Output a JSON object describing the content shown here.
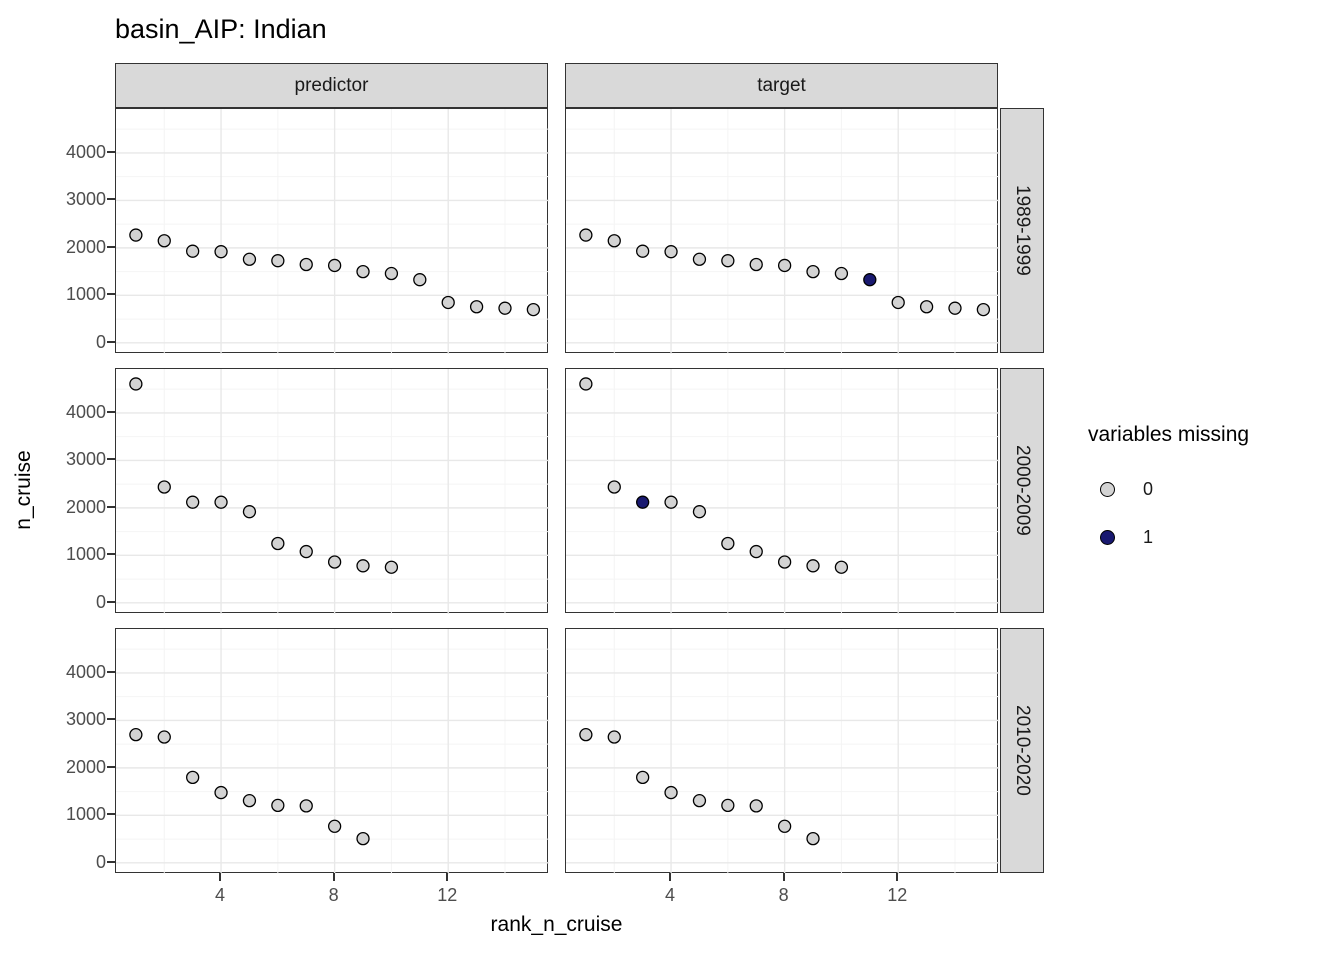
{
  "title": "basin_AIP: Indian",
  "facets": {
    "columns": [
      "predictor",
      "target"
    ],
    "rows": [
      "1989-1999",
      "2000-2009",
      "2010-2020"
    ]
  },
  "axes": {
    "x_label": "rank_n_cruise",
    "y_label": "n_cruise",
    "x_ticks": [
      4,
      8,
      12
    ],
    "y_ticks": [
      4000,
      3000,
      2000,
      1000,
      0
    ]
  },
  "legend": {
    "title": "variables missing",
    "items": [
      {
        "label": "0",
        "color": "#d3d3d3"
      },
      {
        "label": "1",
        "color": "#191970"
      }
    ]
  },
  "colors": {
    "point_fill_missing0": "#d3d3d3",
    "point_fill_missing1": "#191970",
    "point_stroke": "#000000",
    "strip_background": "#d9d9d9",
    "panel_border": "#333333",
    "grid_major": "#e8e8e8",
    "grid_minor": "#f4f4f4",
    "tick_label": "#4d4d4d"
  },
  "chart_data": {
    "type": "scatter",
    "title": "basin_AIP: Indian",
    "xlabel": "rank_n_cruise",
    "ylabel": "n_cruise",
    "legend_title": "variables missing",
    "legend_position": "right",
    "grid": true,
    "col_facets": [
      "predictor",
      "target"
    ],
    "row_facets": [
      "1989-1999",
      "2000-2009",
      "2010-2020"
    ],
    "x_range": [
      0.3,
      15.55
    ],
    "y_range": [
      -235,
      4925
    ],
    "x_major_gridlines": [
      4,
      8,
      12
    ],
    "x_minor_gridlines": [
      2,
      6,
      10,
      14
    ],
    "y_major_gridlines": [
      0,
      1000,
      2000,
      3000,
      4000
    ],
    "y_minor_gridlines": [
      500,
      1500,
      2500,
      3500,
      4500
    ],
    "point_note": "points are [rank_n_cruise, n_cruise, variables_missing]",
    "panels": [
      {
        "row": "1989-1999",
        "col": "predictor",
        "points": [
          [
            1,
            2270,
            0
          ],
          [
            2,
            2150,
            0
          ],
          [
            3,
            1930,
            0
          ],
          [
            4,
            1920,
            0
          ],
          [
            5,
            1760,
            0
          ],
          [
            6,
            1730,
            0
          ],
          [
            7,
            1650,
            0
          ],
          [
            8,
            1630,
            0
          ],
          [
            9,
            1500,
            0
          ],
          [
            10,
            1460,
            0
          ],
          [
            11,
            1330,
            0
          ],
          [
            12,
            850,
            0
          ],
          [
            13,
            760,
            0
          ],
          [
            14,
            730,
            0
          ],
          [
            15,
            700,
            0
          ]
        ]
      },
      {
        "row": "1989-1999",
        "col": "target",
        "points": [
          [
            1,
            2270,
            0
          ],
          [
            2,
            2150,
            0
          ],
          [
            3,
            1930,
            0
          ],
          [
            4,
            1920,
            0
          ],
          [
            5,
            1760,
            0
          ],
          [
            6,
            1730,
            0
          ],
          [
            7,
            1650,
            0
          ],
          [
            8,
            1630,
            0
          ],
          [
            9,
            1500,
            0
          ],
          [
            10,
            1460,
            0
          ],
          [
            11,
            1330,
            1
          ],
          [
            12,
            850,
            0
          ],
          [
            13,
            760,
            0
          ],
          [
            14,
            730,
            0
          ],
          [
            15,
            700,
            0
          ]
        ]
      },
      {
        "row": "2000-2009",
        "col": "predictor",
        "points": [
          [
            1,
            4610,
            0
          ],
          [
            2,
            2440,
            0
          ],
          [
            3,
            2120,
            0
          ],
          [
            4,
            2120,
            0
          ],
          [
            5,
            1920,
            0
          ],
          [
            6,
            1250,
            0
          ],
          [
            7,
            1080,
            0
          ],
          [
            8,
            860,
            0
          ],
          [
            9,
            780,
            0
          ],
          [
            10,
            750,
            0
          ]
        ]
      },
      {
        "row": "2000-2009",
        "col": "target",
        "points": [
          [
            1,
            4610,
            0
          ],
          [
            2,
            2440,
            0
          ],
          [
            3,
            2120,
            1
          ],
          [
            4,
            2120,
            0
          ],
          [
            5,
            1920,
            0
          ],
          [
            6,
            1250,
            0
          ],
          [
            7,
            1080,
            0
          ],
          [
            8,
            860,
            0
          ],
          [
            9,
            780,
            0
          ],
          [
            10,
            750,
            0
          ]
        ]
      },
      {
        "row": "2010-2020",
        "col": "predictor",
        "points": [
          [
            1,
            2700,
            0
          ],
          [
            2,
            2650,
            0
          ],
          [
            3,
            1800,
            0
          ],
          [
            4,
            1480,
            0
          ],
          [
            5,
            1310,
            0
          ],
          [
            6,
            1210,
            0
          ],
          [
            7,
            1200,
            0
          ],
          [
            8,
            770,
            0
          ],
          [
            9,
            510,
            0
          ]
        ]
      },
      {
        "row": "2010-2020",
        "col": "target",
        "points": [
          [
            1,
            2700,
            0
          ],
          [
            2,
            2650,
            0
          ],
          [
            3,
            1800,
            0
          ],
          [
            4,
            1480,
            0
          ],
          [
            5,
            1310,
            0
          ],
          [
            6,
            1210,
            0
          ],
          [
            7,
            1200,
            0
          ],
          [
            8,
            770,
            0
          ],
          [
            9,
            510,
            0
          ]
        ]
      }
    ]
  }
}
